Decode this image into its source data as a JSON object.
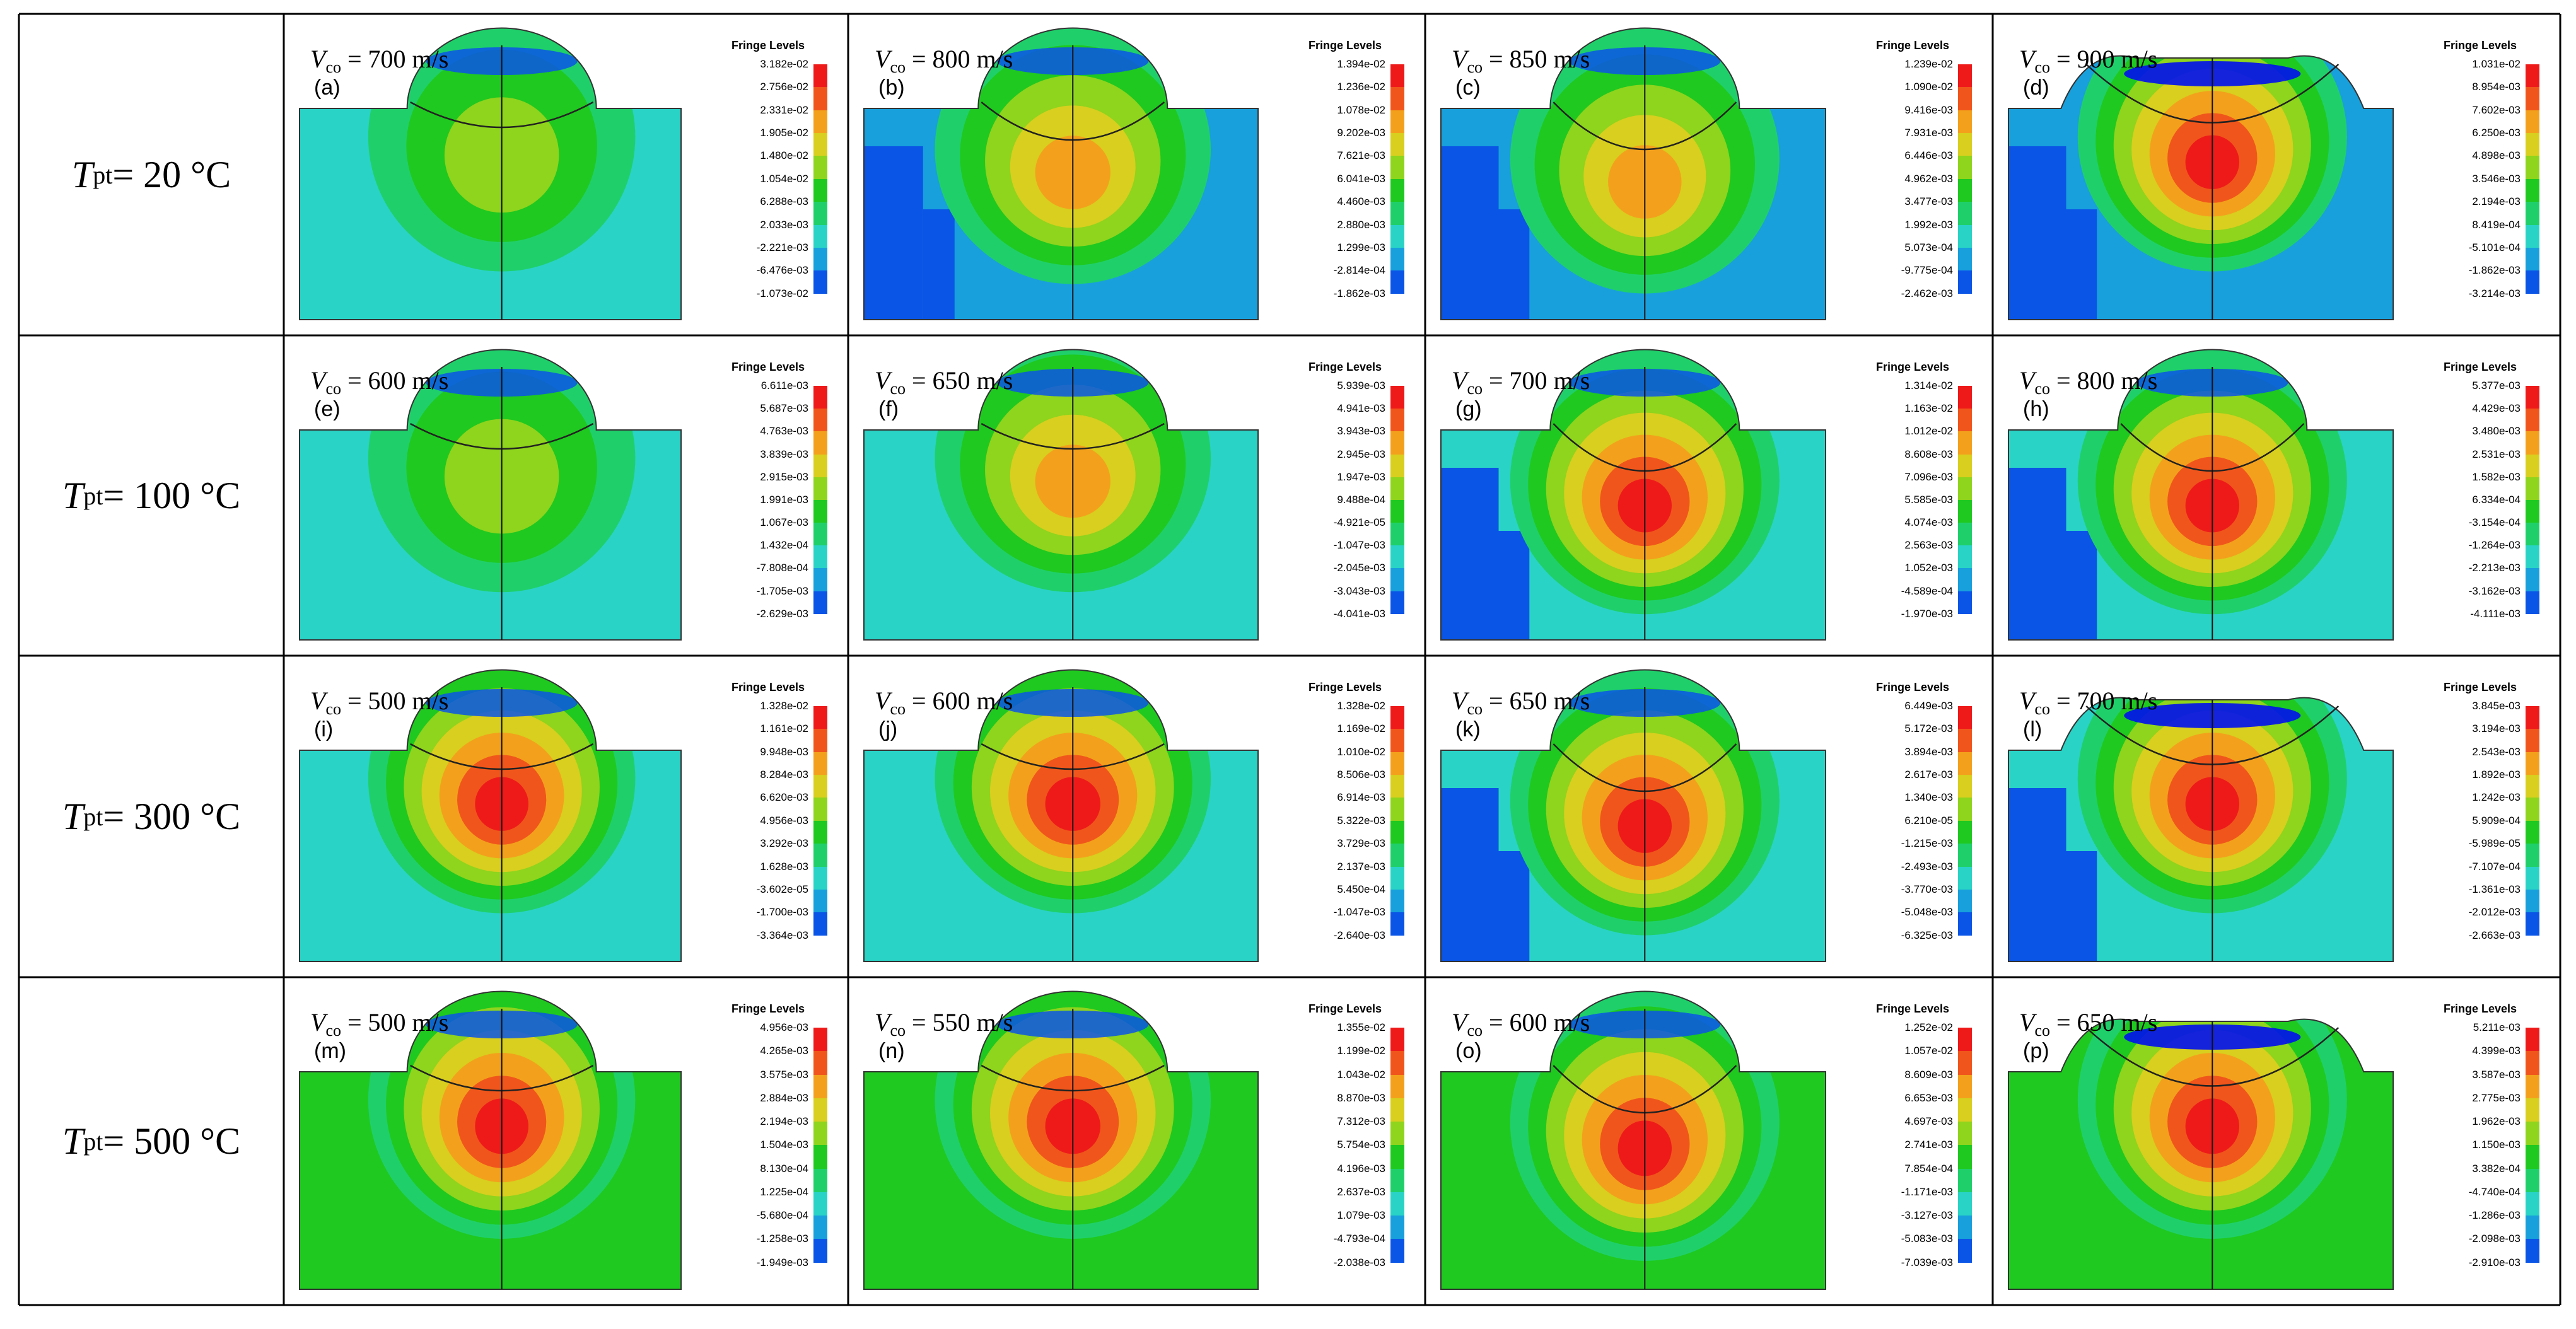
{
  "colors": {
    "fringe_scale": [
      "#0010ee",
      "#0a55e6",
      "#18a0dc",
      "#29d3c6",
      "#1fd06a",
      "#1fc91f",
      "#8fd41d",
      "#d8cf1e",
      "#f3a11c",
      "#f0561b",
      "#ee1a1a"
    ],
    "grid_line": "#000000",
    "background": "#ffffff"
  },
  "rows": [
    {
      "label_var": "T",
      "label_sub": "pt",
      "label_val": "= 20 °C"
    },
    {
      "label_var": "T",
      "label_sub": "pt",
      "label_val": "= 100 °C"
    },
    {
      "label_var": "T",
      "label_sub": "pt",
      "label_val": "= 300 °C"
    },
    {
      "label_var": "T",
      "label_sub": "pt",
      "label_val": "= 500 °C"
    }
  ],
  "panels": [
    {
      "tag": "(a)",
      "var": "V",
      "sub": "co",
      "val": "= 700 m/s",
      "crater": "shallow",
      "hot": "low",
      "legend_title": "Fringe Levels",
      "levels": [
        "3.182e-02",
        "2.756e-02",
        "2.331e-02",
        "1.905e-02",
        "1.480e-02",
        "1.054e-02",
        "6.288e-03",
        "2.033e-03",
        "-2.221e-03",
        "-6.476e-03",
        "-1.073e-02"
      ]
    },
    {
      "tag": "(b)",
      "var": "V",
      "sub": "co",
      "val": "= 800 m/s",
      "crater": "mid",
      "hot": "mid",
      "legend_title": "Fringe Levels",
      "levels": [
        "1.394e-02",
        "1.236e-02",
        "1.078e-02",
        "9.202e-03",
        "7.621e-03",
        "6.041e-03",
        "4.460e-03",
        "2.880e-03",
        "1.299e-03",
        "-2.814e-04",
        "-1.862e-03"
      ]
    },
    {
      "tag": "(c)",
      "var": "V",
      "sub": "co",
      "val": "= 850 m/s",
      "crater": "deep",
      "hot": "mid",
      "legend_title": "Fringe Levels",
      "levels": [
        "1.239e-02",
        "1.090e-02",
        "9.416e-03",
        "7.931e-03",
        "6.446e-03",
        "4.962e-03",
        "3.477e-03",
        "1.992e-03",
        "5.073e-04",
        "-9.775e-04",
        "-2.462e-03"
      ]
    },
    {
      "tag": "(d)",
      "var": "V",
      "sub": "co",
      "val": "= 900 m/s",
      "crater": "flat",
      "hot": "high",
      "legend_title": "Fringe Levels",
      "levels": [
        "1.031e-02",
        "8.954e-03",
        "7.602e-03",
        "6.250e-03",
        "4.898e-03",
        "3.546e-03",
        "2.194e-03",
        "8.419e-04",
        "-5.101e-04",
        "-1.862e-03",
        "-3.214e-03"
      ]
    },
    {
      "tag": "(e)",
      "var": "V",
      "sub": "co",
      "val": "= 600 m/s",
      "crater": "shallow",
      "hot": "low",
      "legend_title": "Fringe Levels",
      "levels": [
        "6.611e-03",
        "5.687e-03",
        "4.763e-03",
        "3.839e-03",
        "2.915e-03",
        "1.991e-03",
        "1.067e-03",
        "1.432e-04",
        "-7.808e-04",
        "-1.705e-03",
        "-2.629e-03"
      ]
    },
    {
      "tag": "(f)",
      "var": "V",
      "sub": "co",
      "val": "= 650 m/s",
      "crater": "shallow",
      "hot": "mid",
      "legend_title": "Fringe Levels",
      "levels": [
        "5.939e-03",
        "4.941e-03",
        "3.943e-03",
        "2.945e-03",
        "1.947e-03",
        "9.488e-04",
        "-4.921e-05",
        "-1.047e-03",
        "-2.045e-03",
        "-3.043e-03",
        "-4.041e-03"
      ]
    },
    {
      "tag": "(g)",
      "var": "V",
      "sub": "co",
      "val": "= 700 m/s",
      "crater": "deep",
      "hot": "high",
      "legend_title": "Fringe Levels",
      "levels": [
        "1.314e-02",
        "1.163e-02",
        "1.012e-02",
        "8.608e-03",
        "7.096e-03",
        "5.585e-03",
        "4.074e-03",
        "2.563e-03",
        "1.052e-03",
        "-4.589e-04",
        "-1.970e-03"
      ]
    },
    {
      "tag": "(h)",
      "var": "V",
      "sub": "co",
      "val": "= 800 m/s",
      "crater": "deep",
      "hot": "high",
      "legend_title": "Fringe Levels",
      "levels": [
        "5.377e-03",
        "4.429e-03",
        "3.480e-03",
        "2.531e-03",
        "1.582e-03",
        "6.334e-04",
        "-3.154e-04",
        "-1.264e-03",
        "-2.213e-03",
        "-3.162e-03",
        "-4.111e-03"
      ]
    },
    {
      "tag": "(i)",
      "var": "V",
      "sub": "co",
      "val": "= 500 m/s",
      "crater": "shallow",
      "hot": "high",
      "legend_title": "Fringe Levels",
      "levels": [
        "1.328e-02",
        "1.161e-02",
        "9.948e-03",
        "8.284e-03",
        "6.620e-03",
        "4.956e-03",
        "3.292e-03",
        "1.628e-03",
        "-3.602e-05",
        "-1.700e-03",
        "-3.364e-03"
      ]
    },
    {
      "tag": "(j)",
      "var": "V",
      "sub": "co",
      "val": "= 600 m/s",
      "crater": "shallow",
      "hot": "high",
      "legend_title": "Fringe Levels",
      "levels": [
        "1.328e-02",
        "1.169e-02",
        "1.010e-02",
        "8.506e-03",
        "6.914e-03",
        "5.322e-03",
        "3.729e-03",
        "2.137e-03",
        "5.450e-04",
        "-1.047e-03",
        "-2.640e-03"
      ]
    },
    {
      "tag": "(k)",
      "var": "V",
      "sub": "co",
      "val": "= 650 m/s",
      "crater": "deep",
      "hot": "high",
      "legend_title": "Fringe Levels",
      "levels": [
        "6.449e-03",
        "5.172e-03",
        "3.894e-03",
        "2.617e-03",
        "1.340e-03",
        "6.210e-05",
        "-1.215e-03",
        "-2.493e-03",
        "-3.770e-03",
        "-5.048e-03",
        "-6.325e-03"
      ]
    },
    {
      "tag": "(l)",
      "var": "V",
      "sub": "co",
      "val": "= 700 m/s",
      "crater": "flat",
      "hot": "high",
      "legend_title": "Fringe Levels",
      "levels": [
        "3.845e-03",
        "3.194e-03",
        "2.543e-03",
        "1.892e-03",
        "1.242e-03",
        "5.909e-04",
        "-5.989e-05",
        "-7.107e-04",
        "-1.361e-03",
        "-2.012e-03",
        "-2.663e-03"
      ]
    },
    {
      "tag": "(m)",
      "var": "V",
      "sub": "co",
      "val": "= 500 m/s",
      "crater": "shallow",
      "hot": "high",
      "legend_title": "Fringe Levels",
      "levels": [
        "4.956e-03",
        "4.265e-03",
        "3.575e-03",
        "2.884e-03",
        "2.194e-03",
        "1.504e-03",
        "8.130e-04",
        "1.225e-04",
        "-5.680e-04",
        "-1.258e-03",
        "-1.949e-03"
      ]
    },
    {
      "tag": "(n)",
      "var": "V",
      "sub": "co",
      "val": "= 550 m/s",
      "crater": "shallow",
      "hot": "high",
      "legend_title": "Fringe Levels",
      "levels": [
        "1.355e-02",
        "1.199e-02",
        "1.043e-02",
        "8.870e-03",
        "7.312e-03",
        "5.754e-03",
        "4.196e-03",
        "2.637e-03",
        "1.079e-03",
        "-4.793e-04",
        "-2.038e-03"
      ]
    },
    {
      "tag": "(o)",
      "var": "V",
      "sub": "co",
      "val": "= 600 m/s",
      "crater": "deep",
      "hot": "high",
      "legend_title": "Fringe Levels",
      "levels": [
        "1.252e-02",
        "1.057e-02",
        "8.609e-03",
        "6.653e-03",
        "4.697e-03",
        "2.741e-03",
        "7.854e-04",
        "-1.171e-03",
        "-3.127e-03",
        "-5.083e-03",
        "-7.039e-03"
      ]
    },
    {
      "tag": "(p)",
      "var": "V",
      "sub": "co",
      "val": "= 650 m/s",
      "crater": "flat",
      "hot": "high",
      "legend_title": "Fringe Levels",
      "levels": [
        "5.211e-03",
        "4.399e-03",
        "3.587e-03",
        "2.775e-03",
        "1.962e-03",
        "1.150e-03",
        "3.382e-04",
        "-4.740e-04",
        "-1.286e-03",
        "-2.098e-03",
        "-2.910e-03"
      ]
    }
  ]
}
